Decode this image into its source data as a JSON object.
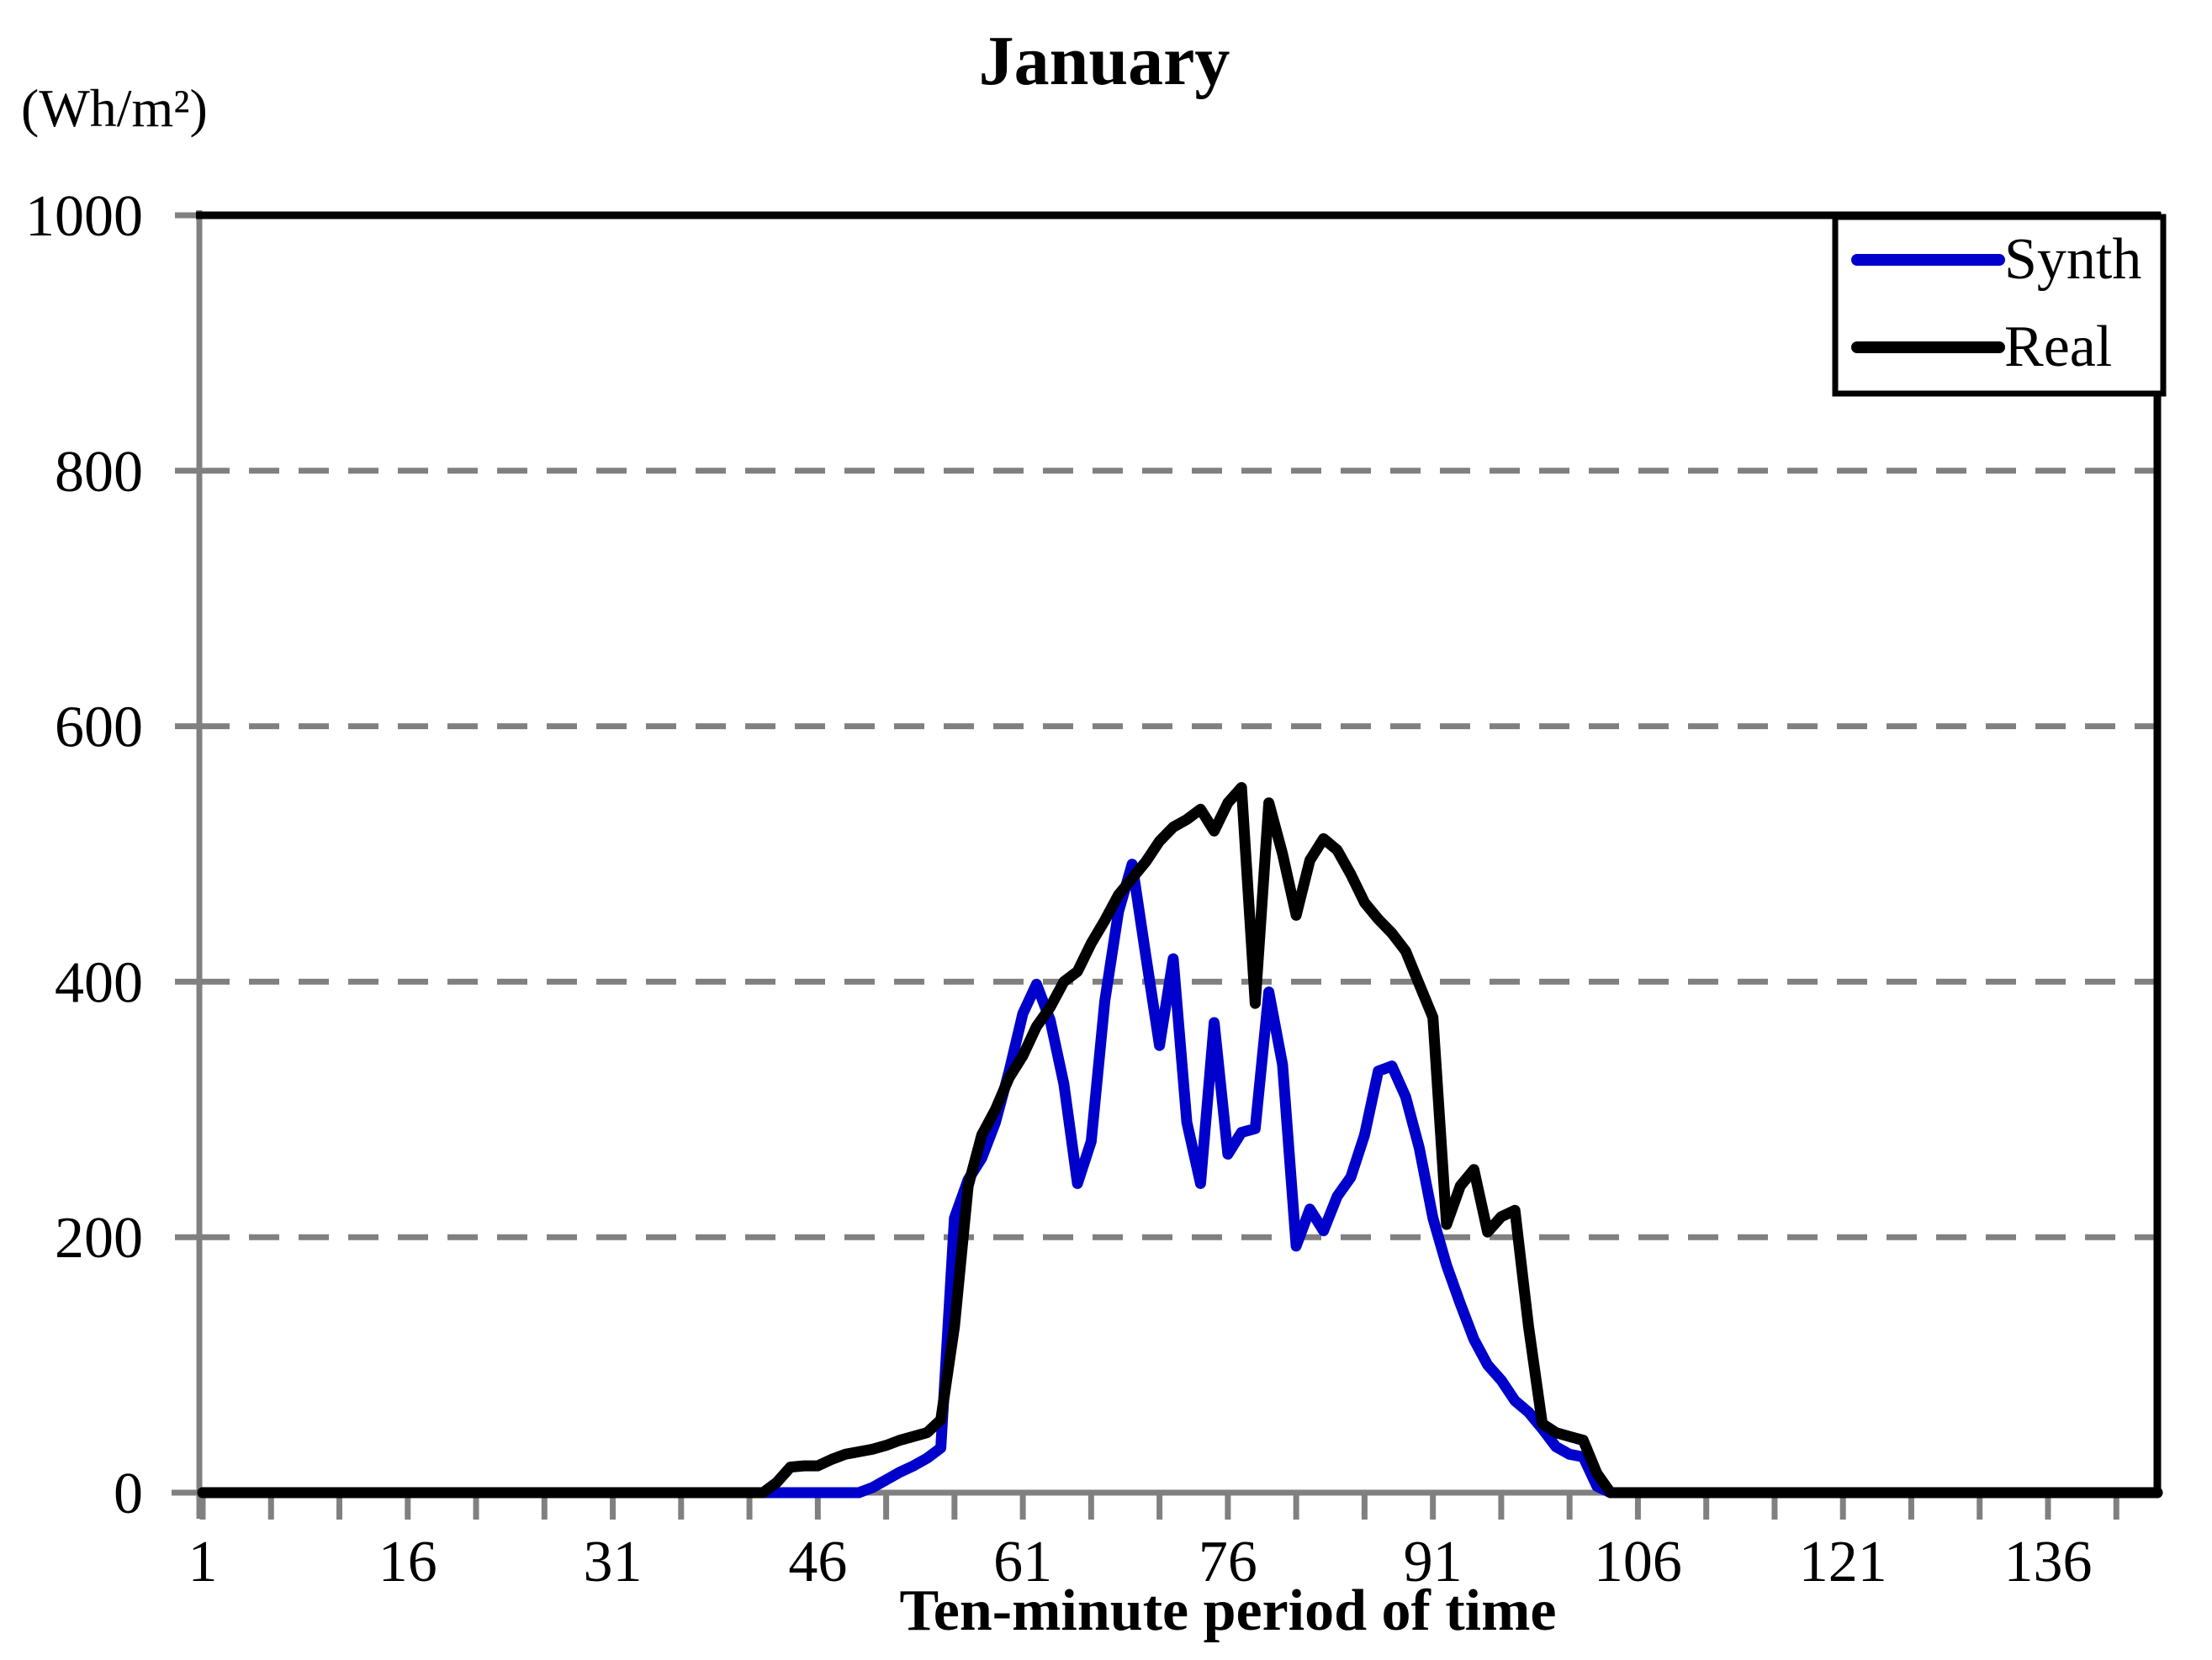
{
  "title": "January",
  "y_axis": {
    "unit_label": "(Wh/m²)",
    "tick_labels": [
      0,
      200,
      400,
      600,
      800,
      1000
    ]
  },
  "x_axis": {
    "title": "Ten-minute period of time",
    "tick_labels": [
      1,
      16,
      31,
      46,
      61,
      76,
      91,
      106,
      121,
      136
    ],
    "minor_tick_step": 5
  },
  "legend": {
    "position": "top-right",
    "entries": [
      {
        "label": "Synth",
        "color": "#0000CC"
      },
      {
        "label": "Real",
        "color": "#000000"
      }
    ]
  },
  "colors": {
    "synth": "#0000CC",
    "real": "#000000",
    "grid": "#808080",
    "axis": "#808080",
    "border": "#000000",
    "background": "#FFFFFF"
  },
  "chart_data": {
    "type": "line",
    "title": "January",
    "xlabel": "Ten-minute period of time",
    "ylabel": "(Wh/m²)",
    "xlim": [
      1,
      144
    ],
    "ylim": [
      0,
      1000
    ],
    "x_ticks": [
      1,
      16,
      31,
      46,
      61,
      76,
      91,
      106,
      121,
      136
    ],
    "x_minor_tick_step": 5,
    "y_ticks": [
      0,
      200,
      400,
      600,
      800,
      1000
    ],
    "gridlines": {
      "y_values": [
        200,
        400,
        600,
        800
      ],
      "style": "dashed"
    },
    "legend_position": "top-right",
    "x_range_note": "one value per ten-minute period, periods 1 to 144",
    "series": [
      {
        "name": "Synth",
        "color": "#0000CC",
        "values": [
          0,
          0,
          0,
          0,
          0,
          0,
          0,
          0,
          0,
          0,
          0,
          0,
          0,
          0,
          0,
          0,
          0,
          0,
          0,
          0,
          0,
          0,
          0,
          0,
          0,
          0,
          0,
          0,
          0,
          0,
          0,
          0,
          0,
          0,
          0,
          0,
          0,
          0,
          0,
          0,
          0,
          0,
          0,
          0,
          0,
          0,
          0,
          0,
          0,
          4,
          10,
          16,
          21,
          27,
          35,
          215,
          245,
          262,
          290,
          330,
          375,
          398,
          370,
          320,
          242,
          275,
          385,
          455,
          492,
          420,
          350,
          418,
          290,
          242,
          368,
          265,
          282,
          285,
          392,
          335,
          193,
          222,
          205,
          232,
          247,
          280,
          330,
          334,
          310,
          270,
          215,
          178,
          148,
          120,
          100,
          88,
          72,
          63,
          50,
          36,
          30,
          28,
          5,
          0,
          0,
          0,
          0,
          0,
          0,
          0,
          0,
          0,
          0,
          0,
          0,
          0,
          0,
          0,
          0,
          0,
          0,
          0,
          0,
          0,
          0,
          0,
          0,
          0,
          0,
          0,
          0,
          0,
          0,
          0,
          0,
          0,
          0,
          0,
          0,
          0,
          0,
          0,
          0,
          0
        ]
      },
      {
        "name": "Real",
        "color": "#000000",
        "values": [
          0,
          0,
          0,
          0,
          0,
          0,
          0,
          0,
          0,
          0,
          0,
          0,
          0,
          0,
          0,
          0,
          0,
          0,
          0,
          0,
          0,
          0,
          0,
          0,
          0,
          0,
          0,
          0,
          0,
          0,
          0,
          0,
          0,
          0,
          0,
          0,
          0,
          0,
          0,
          0,
          0,
          0,
          8,
          20,
          21,
          21,
          26,
          30,
          32,
          34,
          37,
          41,
          44,
          47,
          57,
          130,
          240,
          280,
          300,
          325,
          342,
          365,
          380,
          400,
          408,
          430,
          448,
          468,
          481,
          494,
          510,
          521,
          527,
          535,
          518,
          540,
          552,
          383,
          540,
          500,
          452,
          495,
          512,
          503,
          484,
          462,
          449,
          438,
          424,
          398,
          372,
          210,
          240,
          253,
          204,
          216,
          221,
          130,
          54,
          47,
          44,
          41,
          15,
          0,
          0,
          0,
          0,
          0,
          0,
          0,
          0,
          0,
          0,
          0,
          0,
          0,
          0,
          0,
          0,
          0,
          0,
          0,
          0,
          0,
          0,
          0,
          0,
          0,
          0,
          0,
          0,
          0,
          0,
          0,
          0,
          0,
          0,
          0,
          0,
          0,
          0,
          0,
          0,
          0
        ]
      }
    ]
  }
}
